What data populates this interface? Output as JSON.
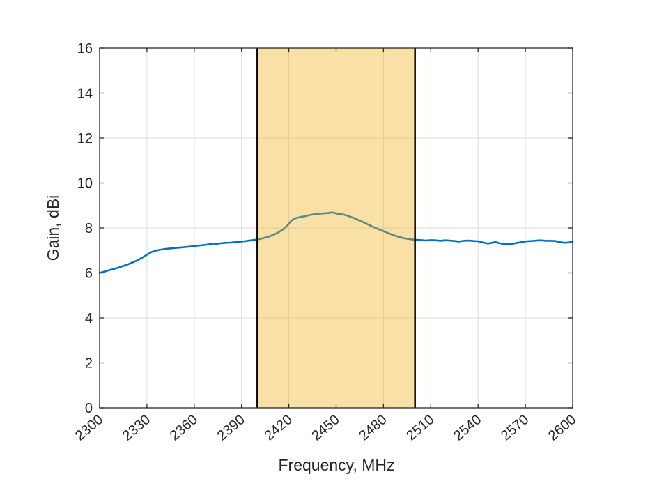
{
  "figure": {
    "background_color": "#ffffff"
  },
  "chart_data": {
    "type": "line",
    "title": "",
    "xlabel": "Frequency, MHz",
    "ylabel": "Gain, dBi",
    "xlim": [
      2300,
      2600
    ],
    "ylim": [
      0,
      16
    ],
    "x_ticks": [
      2300,
      2330,
      2360,
      2390,
      2420,
      2450,
      2480,
      2510,
      2540,
      2570,
      2600
    ],
    "y_ticks": [
      0,
      2,
      4,
      6,
      8,
      10,
      12,
      14,
      16
    ],
    "x_tick_rotation_deg": -40,
    "grid": true,
    "grid_color": "#dcdcdc",
    "axis_color": "#262626",
    "legend": "none",
    "highlight_band": {
      "x0": 2400,
      "x1": 2500,
      "fill": "#EDB120",
      "fill_alpha": 0.4,
      "edge_color": "#000000",
      "edge_width": 2.5
    },
    "series": [
      {
        "color": "#0072BD",
        "line_width": 2.6,
        "points": [
          [
            2300,
            6.0
          ],
          [
            2303,
            6.06
          ],
          [
            2306,
            6.12
          ],
          [
            2309,
            6.18
          ],
          [
            2312,
            6.24
          ],
          [
            2315,
            6.31
          ],
          [
            2318,
            6.38
          ],
          [
            2321,
            6.47
          ],
          [
            2324,
            6.56
          ],
          [
            2327,
            6.68
          ],
          [
            2330,
            6.81
          ],
          [
            2333,
            6.93
          ],
          [
            2336,
            7.0
          ],
          [
            2339,
            7.04
          ],
          [
            2342,
            7.07
          ],
          [
            2345,
            7.09
          ],
          [
            2348,
            7.11
          ],
          [
            2351,
            7.13
          ],
          [
            2354,
            7.15
          ],
          [
            2357,
            7.17
          ],
          [
            2360,
            7.2
          ],
          [
            2363,
            7.22
          ],
          [
            2366,
            7.24
          ],
          [
            2369,
            7.27
          ],
          [
            2372,
            7.31
          ],
          [
            2374,
            7.29
          ],
          [
            2377,
            7.32
          ],
          [
            2380,
            7.34
          ],
          [
            2383,
            7.35
          ],
          [
            2386,
            7.37
          ],
          [
            2389,
            7.39
          ],
          [
            2392,
            7.41
          ],
          [
            2395,
            7.44
          ],
          [
            2398,
            7.47
          ],
          [
            2401,
            7.5
          ],
          [
            2404,
            7.55
          ],
          [
            2407,
            7.61
          ],
          [
            2410,
            7.69
          ],
          [
            2413,
            7.79
          ],
          [
            2416,
            7.92
          ],
          [
            2419,
            8.1
          ],
          [
            2421,
            8.28
          ],
          [
            2423,
            8.4
          ],
          [
            2425,
            8.45
          ],
          [
            2427,
            8.48
          ],
          [
            2430,
            8.52
          ],
          [
            2433,
            8.57
          ],
          [
            2436,
            8.61
          ],
          [
            2439,
            8.63
          ],
          [
            2442,
            8.65
          ],
          [
            2445,
            8.66
          ],
          [
            2447,
            8.69
          ],
          [
            2449,
            8.67
          ],
          [
            2451,
            8.63
          ],
          [
            2453,
            8.62
          ],
          [
            2455,
            8.59
          ],
          [
            2457,
            8.55
          ],
          [
            2459,
            8.5
          ],
          [
            2462,
            8.42
          ],
          [
            2465,
            8.33
          ],
          [
            2468,
            8.23
          ],
          [
            2471,
            8.13
          ],
          [
            2474,
            8.03
          ],
          [
            2477,
            7.94
          ],
          [
            2480,
            7.86
          ],
          [
            2483,
            7.77
          ],
          [
            2486,
            7.69
          ],
          [
            2489,
            7.62
          ],
          [
            2492,
            7.56
          ],
          [
            2495,
            7.52
          ],
          [
            2498,
            7.49
          ],
          [
            2501,
            7.47
          ],
          [
            2504,
            7.46
          ],
          [
            2507,
            7.44
          ],
          [
            2510,
            7.46
          ],
          [
            2513,
            7.45
          ],
          [
            2516,
            7.43
          ],
          [
            2519,
            7.45
          ],
          [
            2522,
            7.44
          ],
          [
            2525,
            7.42
          ],
          [
            2528,
            7.4
          ],
          [
            2531,
            7.43
          ],
          [
            2534,
            7.44
          ],
          [
            2537,
            7.42
          ],
          [
            2540,
            7.41
          ],
          [
            2543,
            7.36
          ],
          [
            2546,
            7.31
          ],
          [
            2549,
            7.34
          ],
          [
            2551,
            7.38
          ],
          [
            2553,
            7.33
          ],
          [
            2556,
            7.29
          ],
          [
            2559,
            7.28
          ],
          [
            2562,
            7.3
          ],
          [
            2565,
            7.34
          ],
          [
            2568,
            7.38
          ],
          [
            2571,
            7.41
          ],
          [
            2574,
            7.42
          ],
          [
            2577,
            7.44
          ],
          [
            2580,
            7.45
          ],
          [
            2583,
            7.43
          ],
          [
            2586,
            7.43
          ],
          [
            2589,
            7.42
          ],
          [
            2592,
            7.37
          ],
          [
            2595,
            7.34
          ],
          [
            2598,
            7.36
          ],
          [
            2600,
            7.4
          ]
        ]
      }
    ]
  }
}
